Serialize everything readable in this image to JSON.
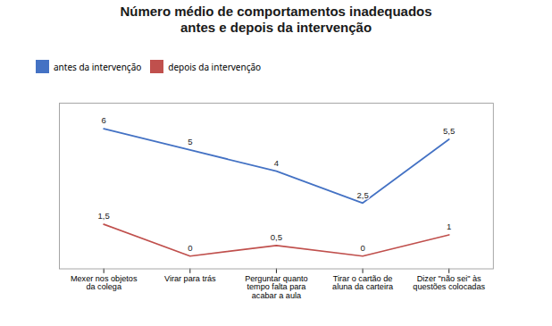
{
  "chart_data": {
    "type": "line",
    "title": "Número médio de comportamentos inadequados\nantes e depois da intervenção",
    "categories": [
      "Mexer nos objetos\nda colega",
      "Virar para trás",
      "Perguntar quanto\ntempo falta para\nacabar a aula",
      "Tirar o cartão de\naluna da carteira",
      "Dizer \"não sei\" às\nquestões colocadas"
    ],
    "series": [
      {
        "name": "antes da intervenção",
        "color": "#4472C4",
        "values": [
          6,
          5,
          4,
          2.5,
          5.5
        ],
        "value_labels": [
          "6",
          "5",
          "4",
          "2,5",
          "5,5"
        ]
      },
      {
        "name": "depois da intervenção",
        "color": "#C0504D",
        "values": [
          1.5,
          0,
          0.5,
          0,
          1
        ],
        "value_labels": [
          "1,5",
          "0",
          "0,5",
          "0",
          "1"
        ]
      }
    ],
    "ylim": [
      -0.6,
      7.2
    ],
    "tick_labels": "x",
    "grid": false,
    "legend": "top",
    "data_labels": true
  }
}
